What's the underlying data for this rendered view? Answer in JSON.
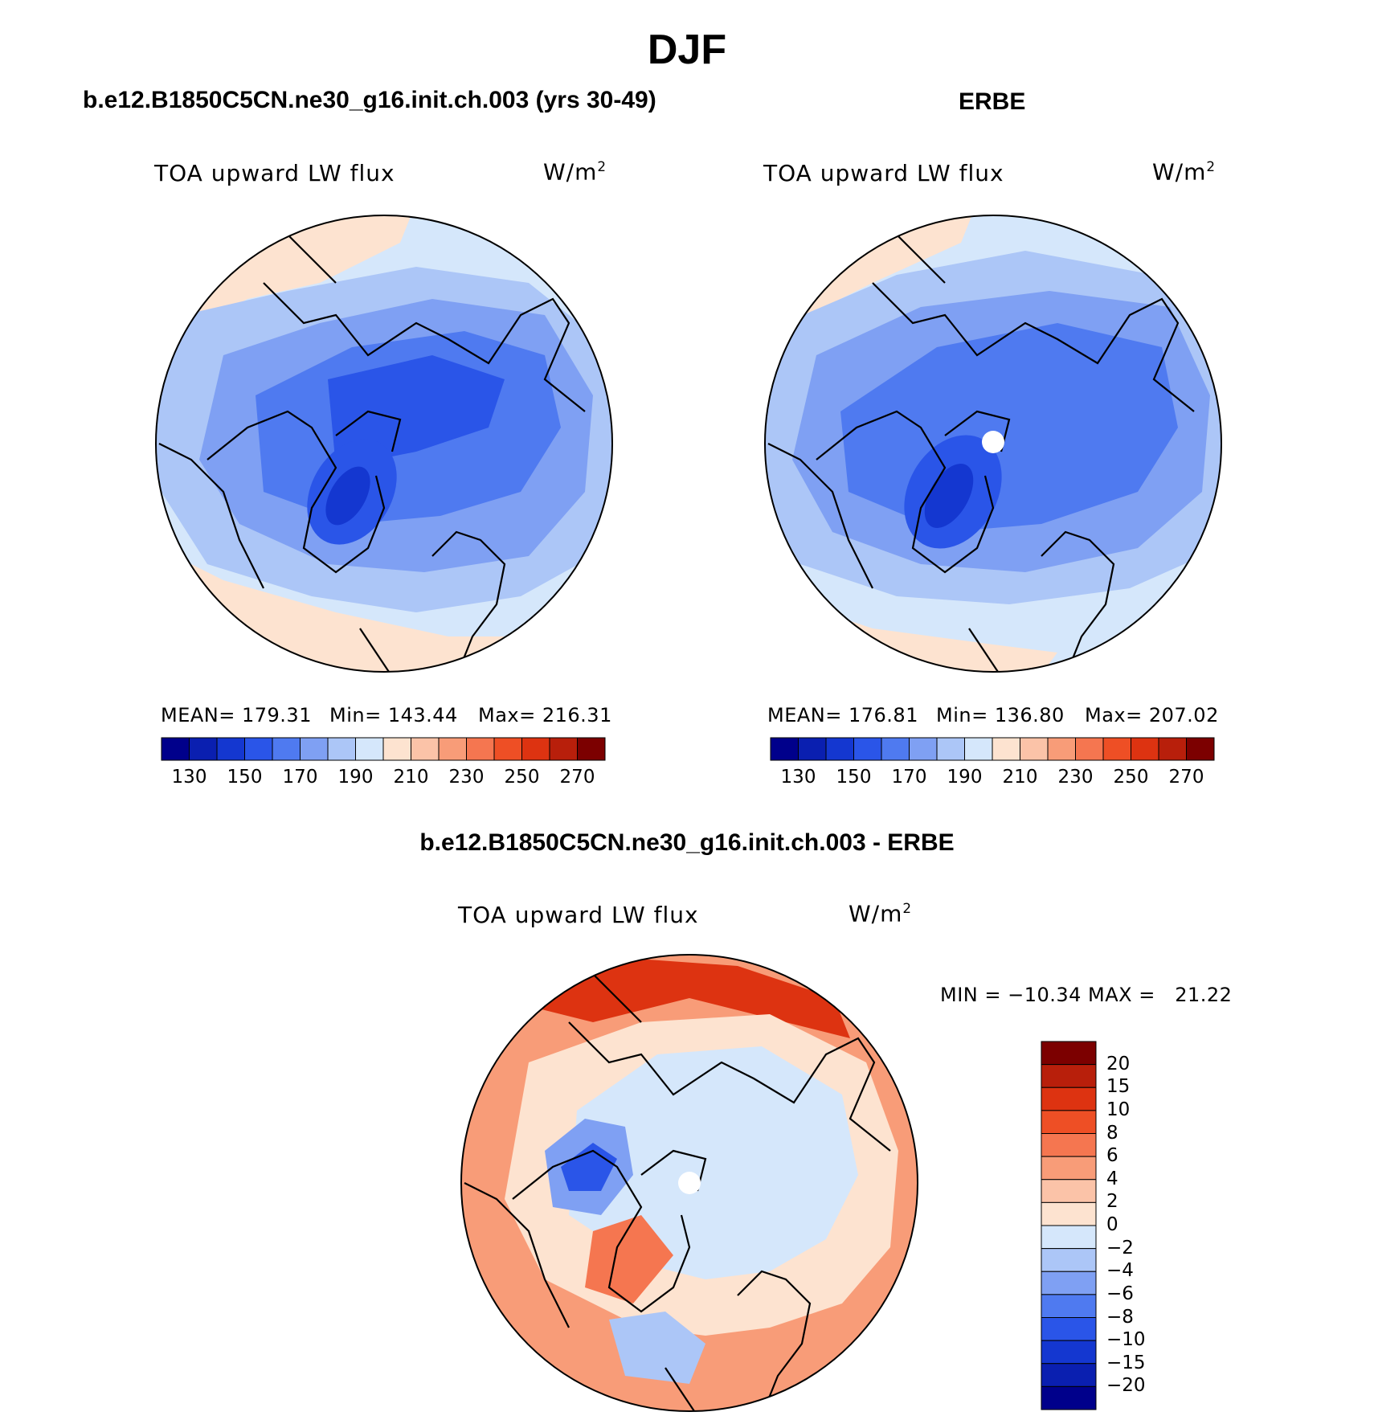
{
  "title": "DJF",
  "panels": [
    {
      "id": "model",
      "title": "b.e12.B1850C5CN.ne30_g16.init.ch.003 (yrs 30-49)",
      "variable": "TOA upward LW flux",
      "units_base": "W/m",
      "units_exp": "2",
      "stats": {
        "mean": "MEAN= 179.31",
        "min": "Min= 143.44",
        "max": "Max= 216.31"
      },
      "colorbar_ticks": [
        "130",
        "150",
        "170",
        "190",
        "210",
        "230",
        "250",
        "270"
      ]
    },
    {
      "id": "obs",
      "title": "ERBE",
      "variable": "TOA upward LW flux",
      "units_base": "W/m",
      "units_exp": "2",
      "stats": {
        "mean": "MEAN= 176.81",
        "min": "Min= 136.80",
        "max": "Max= 207.02"
      },
      "colorbar_ticks": [
        "130",
        "150",
        "170",
        "190",
        "210",
        "230",
        "250",
        "270"
      ]
    }
  ],
  "difference": {
    "title": "b.e12.B1850C5CN.ne30_g16.init.ch.003 - ERBE",
    "variable": "TOA upward LW flux",
    "units_base": "W/m",
    "units_exp": "2",
    "minmax": "MIN = −10.34 MAX =   21.22",
    "colorbar_labels": [
      "20",
      "15",
      "10",
      "8",
      "6",
      "4",
      "2",
      "0",
      "−2",
      "−4",
      "−6",
      "−8",
      "−10",
      "−15",
      "−20"
    ]
  },
  "palettes": {
    "abs": [
      "#00008b",
      "#0a1fb0",
      "#1437d0",
      "#2a55e8",
      "#4f7af0",
      "#7fa0f3",
      "#acc6f7",
      "#d5e7fb",
      "#fde3d0",
      "#fbc3a8",
      "#f89c78",
      "#f57650",
      "#ee4f25",
      "#dd3311",
      "#b81f0b",
      "#7c0000"
    ],
    "diff": [
      "#7c0000",
      "#b81f0b",
      "#dd3311",
      "#ee4f25",
      "#f57650",
      "#f89c78",
      "#fbc3a8",
      "#fde3d0",
      "#d5e7fb",
      "#acc6f7",
      "#7fa0f3",
      "#4f7af0",
      "#2a55e8",
      "#1437d0",
      "#0a1fb0",
      "#00008b"
    ]
  }
}
